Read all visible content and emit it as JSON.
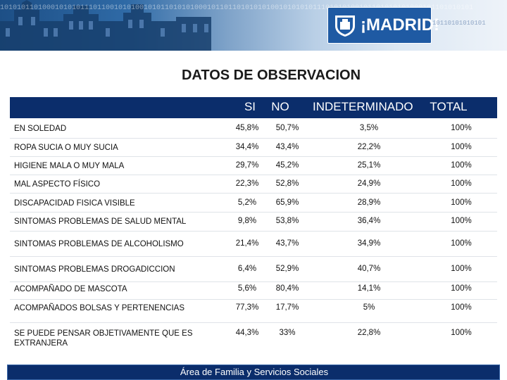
{
  "header": {
    "logo_text": "¡MADRID!",
    "binary_strip": "1010101101000101010111011001010100101011010101000101101101010101001010101011101010100101101010101000101101010101",
    "binary_strip_right": "10110101010101"
  },
  "title": "DATOS DE OBSERVACION",
  "table": {
    "columns": [
      "SI",
      "NO",
      "INDETERMINADO",
      "TOTAL"
    ],
    "rows": [
      {
        "label": "EN SOLEDAD",
        "si": "45,8%",
        "no": "50,7%",
        "ind": "3,5%",
        "total": "100%"
      },
      {
        "label": "ROPA SUCIA O MUY SUCIA",
        "si": "34,4%",
        "no": "43,4%",
        "ind": "22,2%",
        "total": "100%"
      },
      {
        "label": "HIGIENE MALA O MUY MALA",
        "si": "29,7%",
        "no": "45,2%",
        "ind": "25,1%",
        "total": "100%"
      },
      {
        "label": "MAL ASPECTO FÍSICO",
        "si": "22,3%",
        "no": "52,8%",
        "ind": "24,9%",
        "total": "100%"
      },
      {
        "label": "DISCAPACIDAD FISICA VISIBLE",
        "si": "5,2%",
        "no": "65,9%",
        "ind": "28,9%",
        "total": "100%"
      },
      {
        "label": "SINTOMAS PROBLEMAS DE SALUD MENTAL",
        "si": "9,8%",
        "no": "53,8%",
        "ind": "36,4%",
        "total": "100%"
      },
      {
        "label": "SINTOMAS PROBLEMAS DE ALCOHOLISMO",
        "si": "21,4%",
        "no": "43,7%",
        "ind": "34,9%",
        "total": "100%"
      },
      {
        "label": "SINTOMAS PROBLEMAS DROGADICCION",
        "si": "6,4%",
        "no": "52,9%",
        "ind": "40,7%",
        "total": "100%"
      },
      {
        "label": "ACOMPAÑADO DE MASCOTA",
        "si": "5,6%",
        "no": "80,4%",
        "ind": "14,1%",
        "total": "100%"
      },
      {
        "label": "ACOMPAÑADOS BOLSAS Y PERTENENCIAS",
        "si": "77,3%",
        "no": "17,7%",
        "ind": "5%",
        "total": "100%"
      },
      {
        "label": "SE PUEDE PENSAR OBJETIVAMENTE QUE ES EXTRANJERA",
        "si": "44,3%",
        "no": "33%",
        "ind": "22,8%",
        "total": "100%"
      }
    ]
  },
  "footer": {
    "text": "Área de Familia y Servicios Sociales"
  },
  "colors": {
    "header_bg": "#0b2d6b",
    "logo_bg": "#1f5aa3"
  }
}
